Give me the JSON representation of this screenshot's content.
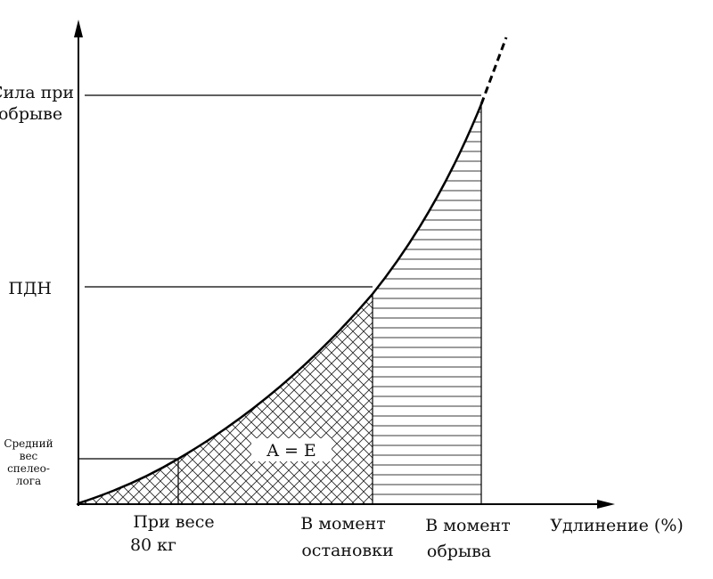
{
  "y_labels": {
    "break_force": [
      "Сила при",
      "обрыве"
    ],
    "pdn": "ПДН",
    "avg_weight": [
      "Средний",
      "вес",
      "спелео-",
      "лога"
    ]
  },
  "x_labels": {
    "at_80kg": [
      "При весе",
      "80 кг"
    ],
    "at_stop": [
      "В момент",
      "остановки"
    ],
    "at_break": [
      "В момент",
      "обрыва"
    ],
    "axis": "Удлинение (%)"
  },
  "area_label": "A = E"
}
